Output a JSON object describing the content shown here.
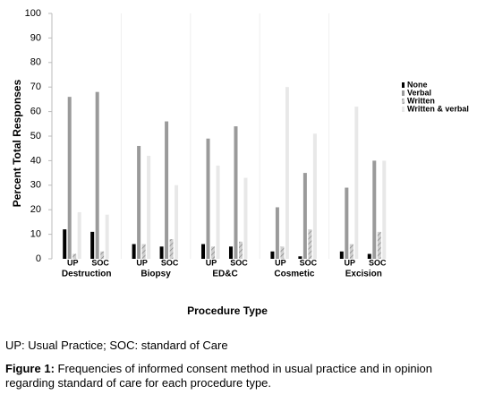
{
  "chart_data": {
    "type": "bar",
    "ylabel": "Percent Total Responses",
    "xlabel": "Procedure Type",
    "groups": [
      "Destruction",
      "Biopsy",
      "ED&C",
      "Cosmetic",
      "Excision"
    ],
    "categories": [
      "UP",
      "SOC",
      "UP",
      "SOC",
      "UP",
      "SOC",
      "UP",
      "SOC",
      "UP",
      "SOC"
    ],
    "series": [
      {
        "name": "None",
        "color": "#000000",
        "values": [
          12,
          11,
          6,
          5,
          6,
          5,
          3,
          1,
          3,
          2
        ]
      },
      {
        "name": "Verbal",
        "color": "#9a9a9a",
        "values": [
          66,
          68,
          46,
          56,
          49,
          54,
          21,
          35,
          29,
          40
        ]
      },
      {
        "name": "Written",
        "color": "#d0d0d0",
        "hatch": true,
        "values": [
          2,
          3,
          6,
          8,
          5,
          7,
          5,
          12,
          6,
          11
        ]
      },
      {
        "name": "Written & verbal",
        "color": "#e8e8e8",
        "values": [
          19,
          18,
          42,
          30,
          38,
          33,
          70,
          51,
          62,
          40
        ]
      }
    ],
    "ylim": [
      0,
      100
    ],
    "yticks": [
      0,
      10,
      20,
      30,
      40,
      50,
      60,
      70,
      80,
      90,
      100
    ],
    "legend": "right"
  },
  "footnote": "UP: Usual Practice; SOC: standard of Care",
  "caption": {
    "label": "Figure 1:",
    "text": "Frequencies of informed consent method in usual practice and in opinion regarding standard of care for each procedure type."
  }
}
